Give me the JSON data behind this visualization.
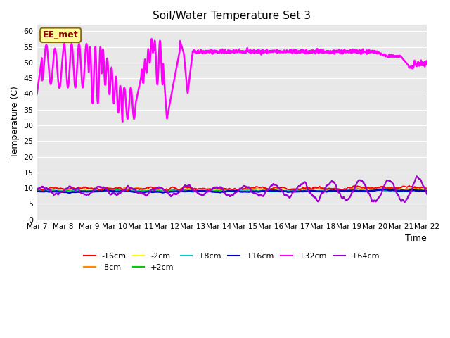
{
  "title": "Soil/Water Temperature Set 3",
  "ylabel": "Temperature (C)",
  "xlabel": "Time",
  "ylim": [
    0,
    62
  ],
  "yticks": [
    0,
    5,
    10,
    15,
    20,
    25,
    30,
    35,
    40,
    45,
    50,
    55,
    60
  ],
  "bg_color": "#e8e8e8",
  "annotation_label": "EE_met",
  "annotation_bg": "#ffff99",
  "annotation_border": "#8B6914",
  "series_colors": {
    "-16cm": "#ff0000",
    "-8cm": "#ff8800",
    "-2cm": "#ffff00",
    "+2cm": "#00cc00",
    "+8cm": "#00cccc",
    "+16cm": "#0000cc",
    "+32cm": "#ff00ff",
    "+64cm": "#9900cc"
  },
  "xtick_labels": [
    "Mar 7",
    "Mar 8",
    "Mar 9",
    "Mar 10",
    "Mar 11",
    "Mar 12",
    "Mar 13",
    "Mar 14",
    "Mar 15",
    "Mar 16",
    "Mar 17",
    "Mar 18",
    "Mar 19",
    "Mar 20",
    "Mar 21",
    "Mar 22"
  ],
  "xtick_positions": [
    0,
    1,
    2,
    3,
    4,
    5,
    6,
    7,
    8,
    9,
    10,
    11,
    12,
    13,
    14,
    15
  ]
}
